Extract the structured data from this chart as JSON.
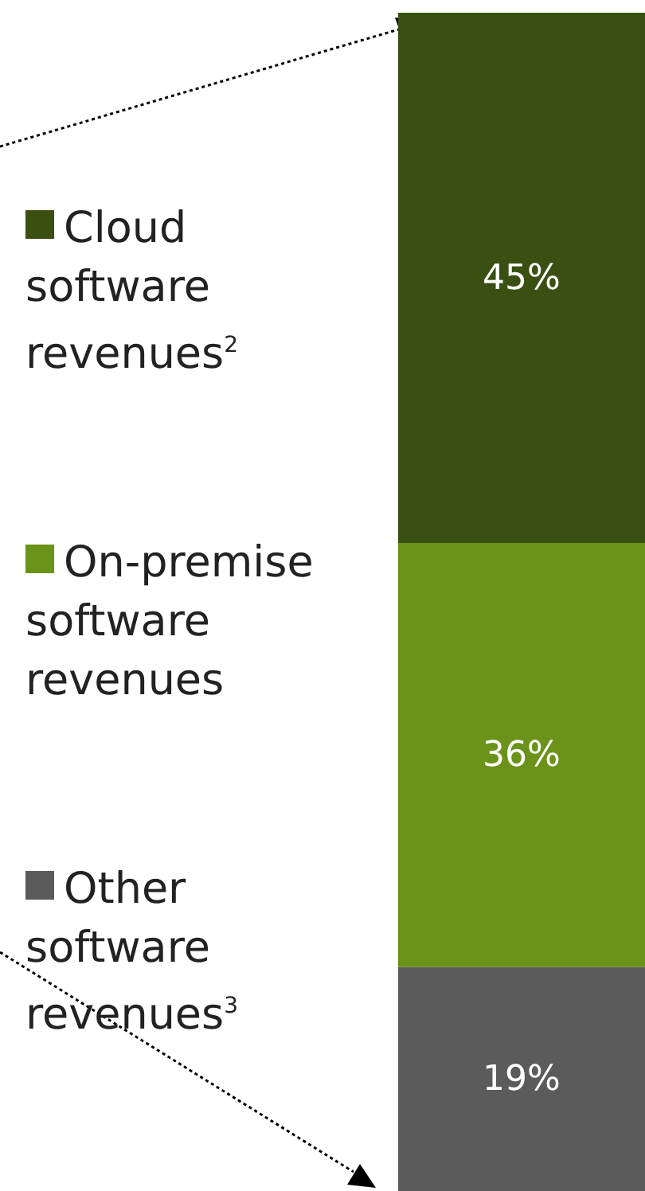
{
  "chart_data": {
    "type": "bar",
    "stacked": true,
    "categories": [
      null
    ],
    "tick_labels": false,
    "legend": "left",
    "series": [
      {
        "name": "Other software revenues$^{3}$",
        "color": "#5b5b5b",
        "values": [
          19
        ],
        "value_labels": [
          "19%"
        ]
      },
      {
        "name": "On-premise software revenues",
        "color": "#6b9219",
        "values": [
          36
        ],
        "value_labels": [
          "36%"
        ]
      },
      {
        "name": "Cloud software revenues$^{2}$",
        "color": "#3a5012",
        "values": [
          45
        ],
        "value_labels": [
          "45%"
        ]
      }
    ]
  }
}
